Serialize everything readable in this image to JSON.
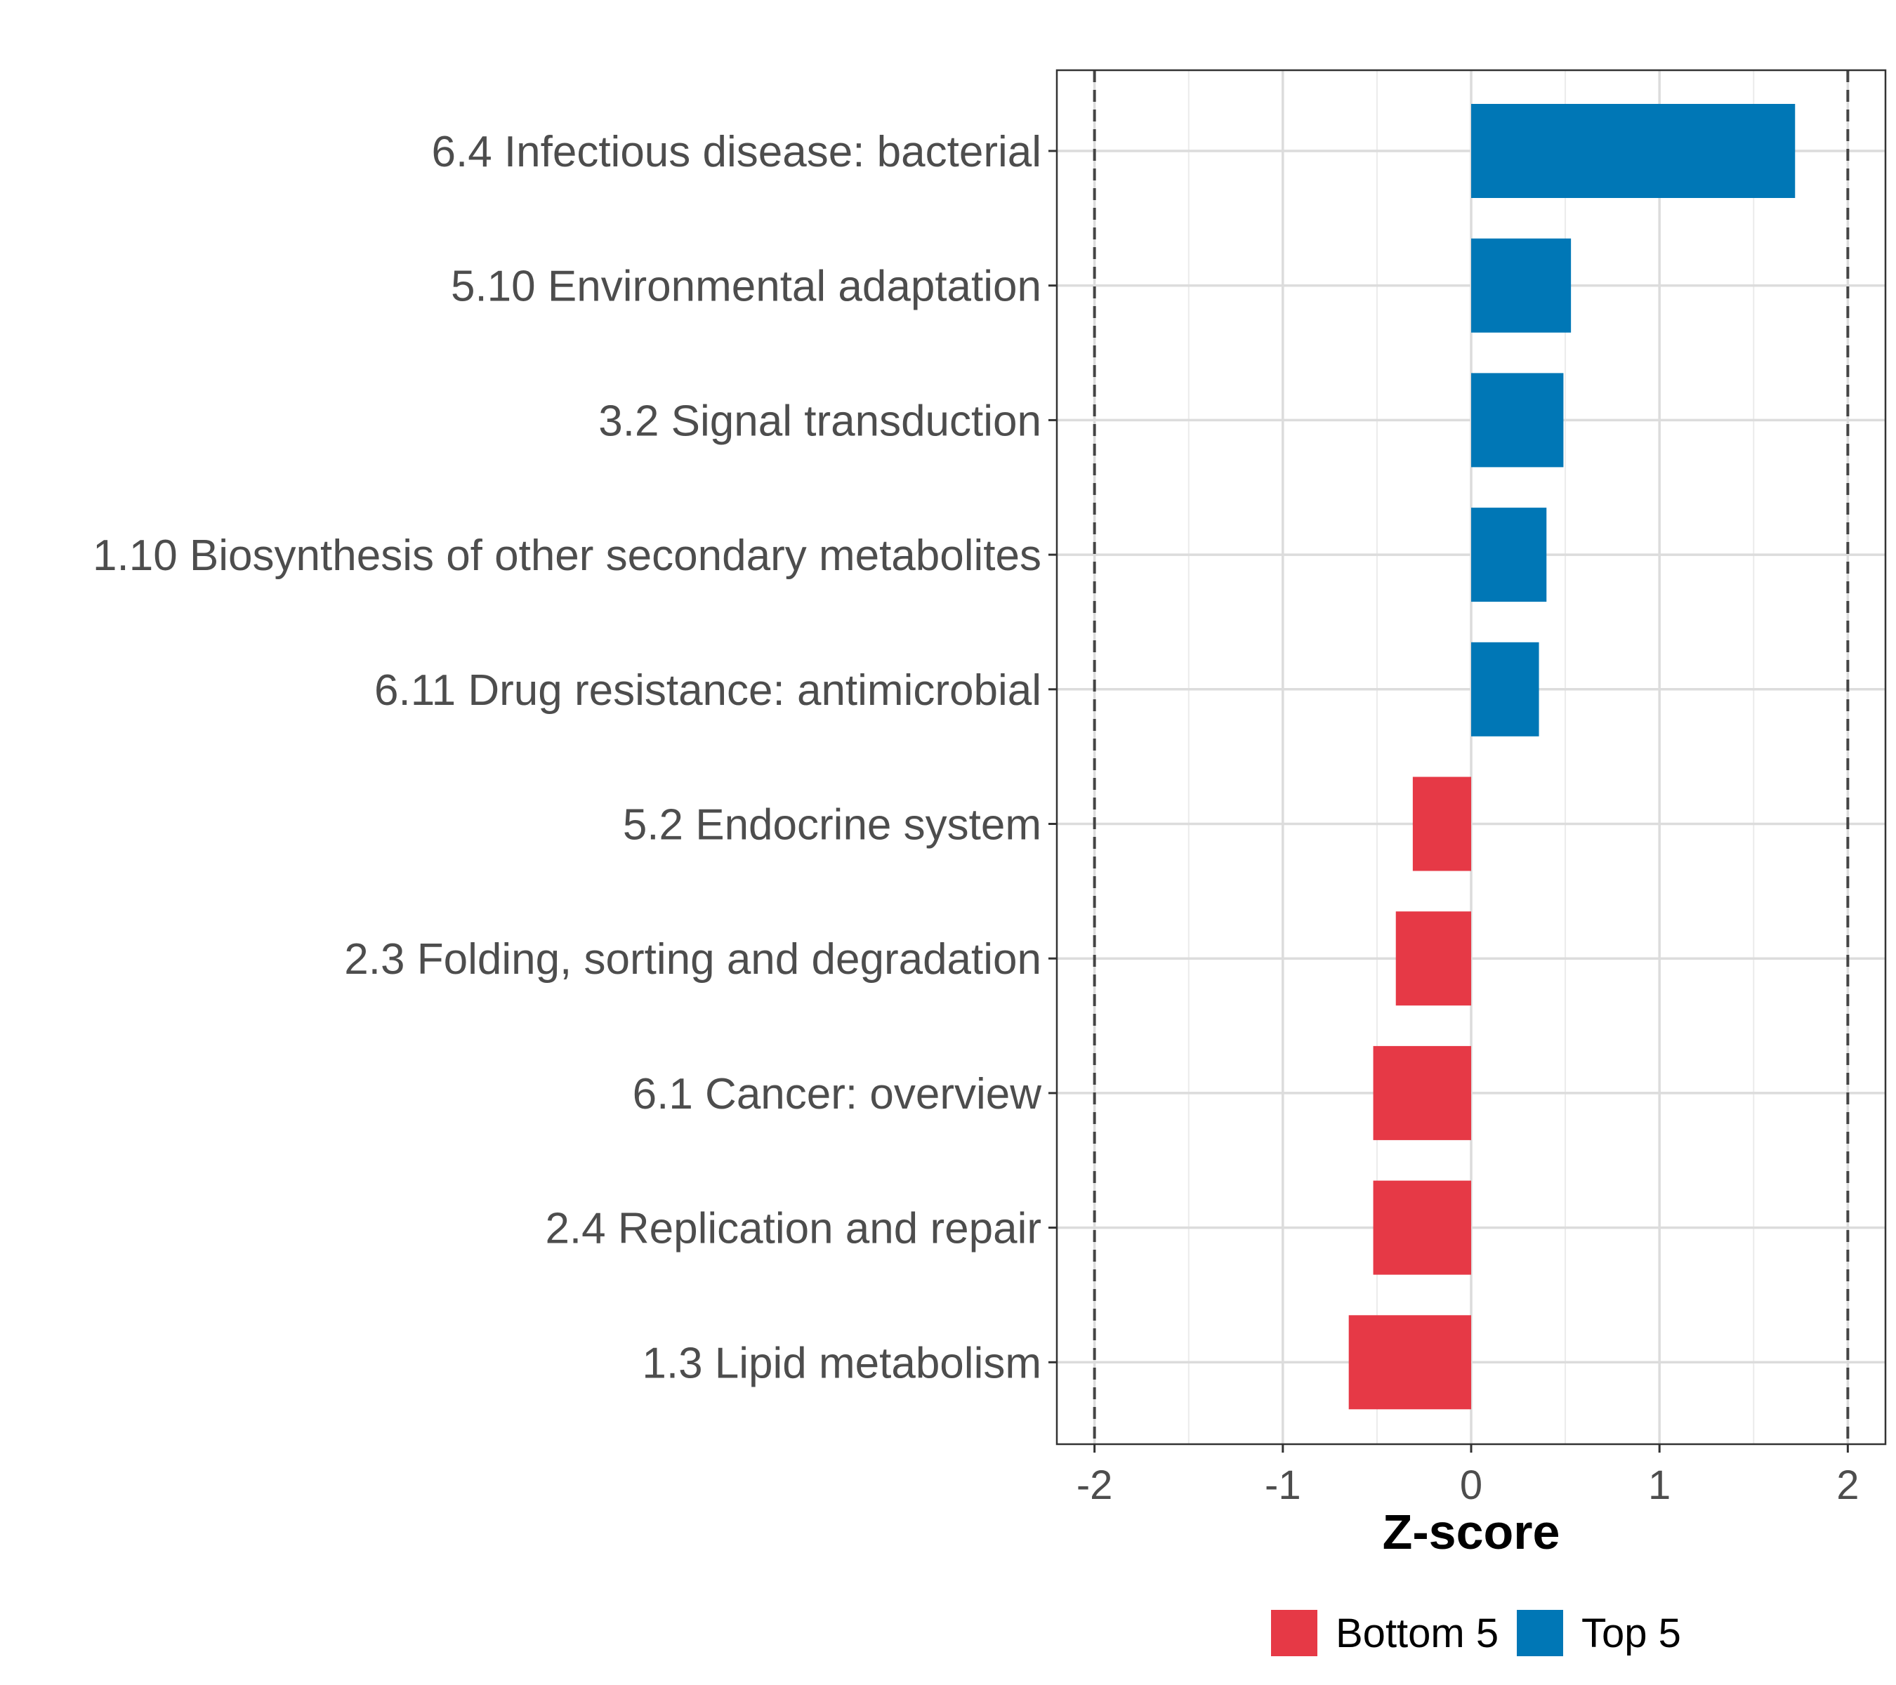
{
  "chart_data": {
    "type": "bar",
    "orientation": "horizontal",
    "title": "",
    "xlabel": "Z-score",
    "ylabel": "",
    "xlim": [
      -2.2,
      2.2
    ],
    "x_ticks": [
      -2,
      -1,
      0,
      1,
      2
    ],
    "x_tick_labels": [
      "-2",
      "-1",
      "0",
      "1",
      "2"
    ],
    "reference_lines": [
      -2,
      2
    ],
    "grid": true,
    "legend_position": "bottom",
    "categories": [
      "6.4 Infectious disease: bacterial",
      "5.10 Environmental adaptation",
      "3.2 Signal transduction",
      "1.10 Biosynthesis of other secondary metabolites",
      "6.11 Drug resistance: antimicrobial",
      "5.2 Endocrine system",
      "2.3 Folding, sorting and degradation",
      "6.1 Cancer: overview",
      "2.4 Replication and repair",
      "1.3 Lipid metabolism"
    ],
    "values": [
      1.72,
      0.53,
      0.49,
      0.4,
      0.36,
      -0.31,
      -0.4,
      -0.52,
      -0.52,
      -0.65
    ],
    "groups": [
      "Top 5",
      "Top 5",
      "Top 5",
      "Top 5",
      "Top 5",
      "Bottom 5",
      "Bottom 5",
      "Bottom 5",
      "Bottom 5",
      "Bottom 5"
    ],
    "legend": [
      {
        "name": "Bottom 5",
        "color": "#e63946"
      },
      {
        "name": "Top 5",
        "color": "#0077b6"
      }
    ]
  }
}
